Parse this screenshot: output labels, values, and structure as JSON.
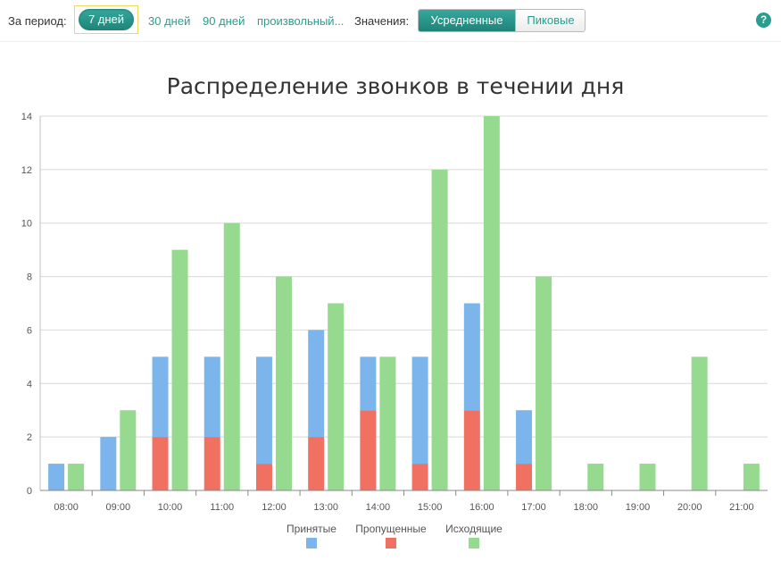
{
  "toolbar": {
    "period_label": "За период:",
    "period_selected": "7 дней",
    "period_options": [
      "30 дней",
      "90 дней",
      "произвольный..."
    ],
    "values_label": "Значения:",
    "values_active": "Усредненные",
    "values_inactive": "Пиковые",
    "help_glyph": "?"
  },
  "colors": {
    "accent": "#2a9d8f",
    "accepted": "#7cb5ec",
    "missed": "#f07061",
    "outgoing": "#96da90"
  },
  "chart_data": {
    "type": "bar",
    "title": "Распределение звонков в течении дня",
    "categories": [
      "08:00",
      "09:00",
      "10:00",
      "11:00",
      "12:00",
      "13:00",
      "14:00",
      "15:00",
      "16:00",
      "17:00",
      "18:00",
      "19:00",
      "20:00",
      "21:00"
    ],
    "series": [
      {
        "name": "Принятые",
        "stack": "incoming",
        "values": [
          1,
          2,
          3,
          3,
          4,
          4,
          2,
          4,
          4,
          2,
          0,
          0,
          0,
          0
        ]
      },
      {
        "name": "Пропущенные",
        "stack": "incoming",
        "values": [
          0,
          0,
          2,
          2,
          1,
          2,
          3,
          1,
          3,
          1,
          0,
          0,
          0,
          0
        ]
      },
      {
        "name": "Исходящие",
        "stack": "outgoing",
        "values": [
          1,
          3,
          9,
          10,
          8,
          7,
          5,
          12,
          14,
          8,
          1,
          1,
          5,
          1
        ]
      }
    ],
    "ylim": [
      0,
      14
    ],
    "yticks": [
      0,
      2,
      4,
      6,
      8,
      10,
      12,
      14
    ],
    "grid": true,
    "legend": "bottom-center"
  }
}
